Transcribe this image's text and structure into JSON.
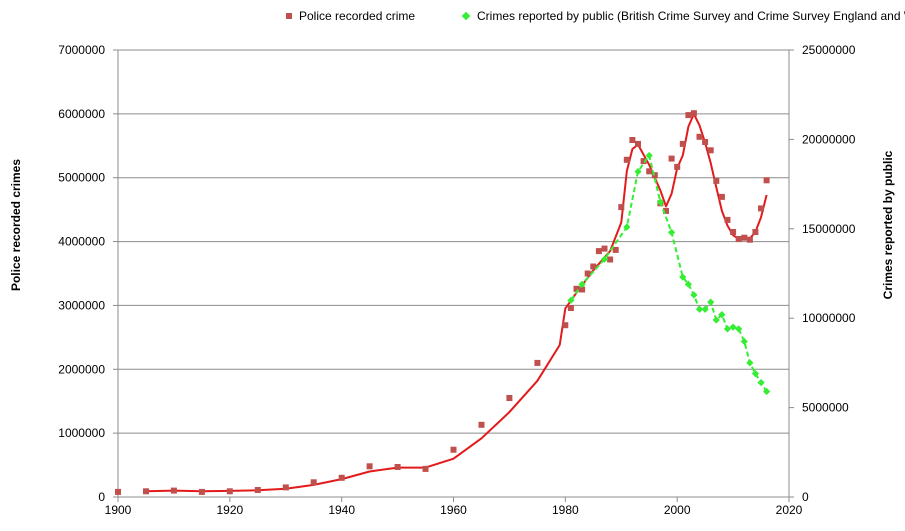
{
  "chart_data": {
    "type": "line",
    "legend": {
      "placement": "top",
      "entries": [
        {
          "label": "Police recorded crime",
          "color": "#c0504d",
          "marker": "square"
        },
        {
          "label": "Crimes reported by public (British Crime Survey and Crime Survey England and Wales)",
          "color": "#33ee33",
          "marker": "diamond"
        }
      ]
    },
    "xlim": [
      1900,
      2020
    ],
    "x_ticks": [
      "1900",
      "1920",
      "1940",
      "1960",
      "1980",
      "2000",
      "2020"
    ],
    "ylabel": "Police recorded crimes",
    "ylim": [
      0,
      7000000
    ],
    "y_ticks": [
      "0",
      "1000000",
      "2000000",
      "3000000",
      "4000000",
      "5000000",
      "6000000",
      "7000000"
    ],
    "y2label": "Crimes reported by public",
    "y2lim": [
      0,
      25000000
    ],
    "y2_ticks": [
      "0",
      "5000000",
      "10000000",
      "15000000",
      "20000000",
      "25000000"
    ],
    "grid": "horizontal",
    "colors": {
      "police": "#c0504d",
      "police_line": "#e31a1c",
      "survey": "#33ee33",
      "grid": "#8c8c8c",
      "axis": "#8c8c8c"
    },
    "series": [
      {
        "name": "Police recorded crime",
        "axis": "left",
        "points": [
          [
            1900,
            80000
          ],
          [
            1905,
            90000
          ],
          [
            1910,
            100000
          ],
          [
            1915,
            80000
          ],
          [
            1920,
            90000
          ],
          [
            1925,
            110000
          ],
          [
            1930,
            150000
          ],
          [
            1935,
            230000
          ],
          [
            1940,
            300000
          ],
          [
            1945,
            480000
          ],
          [
            1950,
            470000
          ],
          [
            1955,
            440000
          ],
          [
            1960,
            740000
          ],
          [
            1965,
            1130000
          ],
          [
            1970,
            1550000
          ],
          [
            1975,
            2100000
          ],
          [
            1980,
            2690000
          ],
          [
            1981,
            2960000
          ],
          [
            1982,
            3260000
          ],
          [
            1983,
            3250000
          ],
          [
            1984,
            3500000
          ],
          [
            1985,
            3610000
          ],
          [
            1986,
            3850000
          ],
          [
            1987,
            3890000
          ],
          [
            1988,
            3720000
          ],
          [
            1989,
            3870000
          ],
          [
            1990,
            4540000
          ],
          [
            1991,
            5280000
          ],
          [
            1992,
            5590000
          ],
          [
            1993,
            5530000
          ],
          [
            1994,
            5260000
          ],
          [
            1995,
            5100000
          ],
          [
            1996,
            5040000
          ],
          [
            1997,
            4600000
          ],
          [
            1998,
            4480000
          ],
          [
            1999,
            5300000
          ],
          [
            2000,
            5170000
          ],
          [
            2001,
            5530000
          ],
          [
            2002,
            5980000
          ],
          [
            2003,
            6010000
          ],
          [
            2004,
            5640000
          ],
          [
            2005,
            5560000
          ],
          [
            2006,
            5430000
          ],
          [
            2007,
            4950000
          ],
          [
            2008,
            4700000
          ],
          [
            2009,
            4340000
          ],
          [
            2010,
            4150000
          ],
          [
            2011,
            4040000
          ],
          [
            2012,
            4060000
          ],
          [
            2013,
            4030000
          ],
          [
            2014,
            4150000
          ],
          [
            2015,
            4520000
          ],
          [
            2016,
            4960000
          ]
        ],
        "trend": [
          [
            1905,
            90000
          ],
          [
            1910,
            100000
          ],
          [
            1915,
            90000
          ],
          [
            1920,
            95000
          ],
          [
            1925,
            105000
          ],
          [
            1930,
            130000
          ],
          [
            1935,
            190000
          ],
          [
            1940,
            280000
          ],
          [
            1945,
            400000
          ],
          [
            1950,
            460000
          ],
          [
            1955,
            460000
          ],
          [
            1960,
            600000
          ],
          [
            1965,
            920000
          ],
          [
            1970,
            1330000
          ],
          [
            1975,
            1820000
          ],
          [
            1979,
            2380000
          ],
          [
            1980,
            2950000
          ],
          [
            1982,
            3200000
          ],
          [
            1985,
            3550000
          ],
          [
            1988,
            3850000
          ],
          [
            1990,
            4300000
          ],
          [
            1991,
            5100000
          ],
          [
            1992,
            5450000
          ],
          [
            1993,
            5520000
          ],
          [
            1995,
            5200000
          ],
          [
            1997,
            4800000
          ],
          [
            1998,
            4550000
          ],
          [
            1999,
            4750000
          ],
          [
            2000,
            5150000
          ],
          [
            2001,
            5350000
          ],
          [
            2002,
            5800000
          ],
          [
            2003,
            6000000
          ],
          [
            2004,
            5820000
          ],
          [
            2005,
            5550000
          ],
          [
            2006,
            5230000
          ],
          [
            2007,
            4850000
          ],
          [
            2008,
            4480000
          ],
          [
            2009,
            4250000
          ],
          [
            2010,
            4100000
          ],
          [
            2011,
            4040000
          ],
          [
            2012,
            4040000
          ],
          [
            2013,
            4050000
          ],
          [
            2014,
            4150000
          ],
          [
            2015,
            4380000
          ],
          [
            2016,
            4730000
          ]
        ]
      },
      {
        "name": "Crimes reported by public (British Crime Survey and Crime Survey England and Wales)",
        "axis": "right",
        "points": [
          [
            1981,
            11000000
          ],
          [
            1983,
            11900000
          ],
          [
            1987,
            13300000
          ],
          [
            1991,
            15100000
          ],
          [
            1993,
            18200000
          ],
          [
            1995,
            19100000
          ],
          [
            1997,
            16500000
          ],
          [
            1999,
            14800000
          ],
          [
            2001,
            12300000
          ],
          [
            2002,
            11900000
          ],
          [
            2003,
            11300000
          ],
          [
            2004,
            10500000
          ],
          [
            2005,
            10500000
          ],
          [
            2006,
            10900000
          ],
          [
            2007,
            9900000
          ],
          [
            2008,
            10200000
          ],
          [
            2009,
            9400000
          ],
          [
            2010,
            9500000
          ],
          [
            2011,
            9400000
          ],
          [
            2012,
            8700000
          ],
          [
            2013,
            7500000
          ],
          [
            2014,
            6900000
          ],
          [
            2015,
            6400000
          ],
          [
            2016,
            5900000
          ]
        ]
      }
    ]
  }
}
